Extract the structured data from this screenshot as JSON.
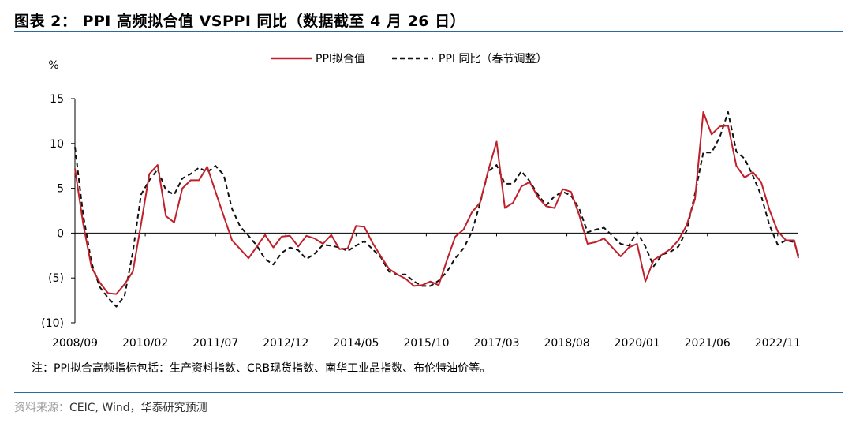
{
  "header": {
    "figure_title": "图表 2：  PPI 高频拟合值 VSPPI 同比（数据截至 4 月 26 日）"
  },
  "footer": {
    "note": "注：PPI拟合高频指标包括：生产资料指数、CRB现货指数、南华工业品指数、布伦特油价等。",
    "source_prefix": "资料来源：",
    "source_rest": "CEIC, Wind，华泰研究预测"
  },
  "colors": {
    "fit": "#c0202a",
    "actual": "#111111",
    "rule": "#2b6a9e"
  },
  "chart_data": {
    "type": "line",
    "title": "",
    "ylabel": "%",
    "xlabel": "",
    "ylim": [
      -10,
      15
    ],
    "yticks": [
      15,
      10,
      5,
      0,
      -5,
      -10
    ],
    "ytick_labels": [
      "15",
      "10",
      "5",
      "0",
      "(5)",
      "(10)"
    ],
    "xtick_labels": [
      "2008/09",
      "2010/02",
      "2011/07",
      "2012/12",
      "2014/05",
      "2015/10",
      "2017/03",
      "2018/08",
      "2020/01",
      "2021/06",
      "2022/11"
    ],
    "x_range": [
      "2008/09",
      "2023/04"
    ],
    "legend_position": "top-center",
    "grid": false,
    "series": [
      {
        "name": "PPI拟合值",
        "style": "solid",
        "x": [
          "2008/09",
          "2008/11",
          "2009/01",
          "2009/03",
          "2009/05",
          "2009/07",
          "2009/09",
          "2009/11",
          "2010/01",
          "2010/03",
          "2010/05",
          "2010/07",
          "2010/09",
          "2010/11",
          "2011/01",
          "2011/03",
          "2011/05",
          "2011/07",
          "2011/09",
          "2011/11",
          "2012/01",
          "2012/03",
          "2012/05",
          "2012/07",
          "2012/09",
          "2012/11",
          "2013/01",
          "2013/03",
          "2013/05",
          "2013/07",
          "2013/09",
          "2013/11",
          "2014/01",
          "2014/03",
          "2014/05",
          "2014/07",
          "2014/09",
          "2014/11",
          "2015/01",
          "2015/03",
          "2015/05",
          "2015/07",
          "2015/09",
          "2015/11",
          "2016/01",
          "2016/03",
          "2016/05",
          "2016/07",
          "2016/09",
          "2016/11",
          "2017/01",
          "2017/03",
          "2017/05",
          "2017/07",
          "2017/09",
          "2017/11",
          "2018/01",
          "2018/03",
          "2018/05",
          "2018/07",
          "2018/09",
          "2018/11",
          "2019/01",
          "2019/03",
          "2019/05",
          "2019/07",
          "2019/09",
          "2019/11",
          "2020/01",
          "2020/03",
          "2020/05",
          "2020/07",
          "2020/09",
          "2020/11",
          "2021/01",
          "2021/03",
          "2021/05",
          "2021/07",
          "2021/09",
          "2021/11",
          "2022/01",
          "2022/03",
          "2022/05",
          "2022/07",
          "2022/09",
          "2022/11",
          "2023/01",
          "2023/03",
          "2023/04"
        ],
        "values": [
          7.2,
          1.0,
          -3.8,
          -5.5,
          -6.7,
          -6.8,
          -5.7,
          -4.3,
          1.0,
          6.6,
          7.6,
          1.9,
          1.2,
          5.0,
          5.9,
          5.9,
          7.4,
          4.6,
          1.9,
          -0.8,
          -1.8,
          -2.8,
          -1.5,
          -0.2,
          -1.6,
          -0.4,
          -0.3,
          -1.5,
          -0.3,
          -0.6,
          -1.2,
          -0.2,
          -1.8,
          -1.7,
          0.8,
          0.7,
          -1.1,
          -2.6,
          -4.0,
          -4.6,
          -5.1,
          -5.9,
          -5.8,
          -5.4,
          -5.8,
          -3.0,
          -0.4,
          0.4,
          2.3,
          3.4,
          7.0,
          10.2,
          2.8,
          3.4,
          5.2,
          5.7,
          4.0,
          3.0,
          2.8,
          4.9,
          4.6,
          2.0,
          -1.2,
          -1.0,
          -0.6,
          -1.6,
          -2.6,
          -1.6,
          -1.2,
          -5.4,
          -3.0,
          -2.4,
          -1.8,
          -0.8,
          0.9,
          3.8,
          13.5,
          11.0,
          11.9,
          12.0,
          7.5,
          6.2,
          6.8,
          5.7,
          2.6,
          0.2,
          -0.8,
          -0.8,
          -2.8
        ]
      },
      {
        "name": "PPI 同比（春节调整）",
        "style": "dashed",
        "x": [
          "2008/09",
          "2008/11",
          "2009/01",
          "2009/03",
          "2009/05",
          "2009/07",
          "2009/09",
          "2009/11",
          "2010/01",
          "2010/03",
          "2010/05",
          "2010/07",
          "2010/09",
          "2010/11",
          "2011/01",
          "2011/03",
          "2011/05",
          "2011/07",
          "2011/09",
          "2011/11",
          "2012/01",
          "2012/03",
          "2012/05",
          "2012/07",
          "2012/09",
          "2012/11",
          "2013/01",
          "2013/03",
          "2013/05",
          "2013/07",
          "2013/09",
          "2013/11",
          "2014/01",
          "2014/03",
          "2014/05",
          "2014/07",
          "2014/09",
          "2014/11",
          "2015/01",
          "2015/03",
          "2015/05",
          "2015/07",
          "2015/09",
          "2015/11",
          "2016/01",
          "2016/03",
          "2016/05",
          "2016/07",
          "2016/09",
          "2016/11",
          "2017/01",
          "2017/03",
          "2017/05",
          "2017/07",
          "2017/09",
          "2017/11",
          "2018/01",
          "2018/03",
          "2018/05",
          "2018/07",
          "2018/09",
          "2018/11",
          "2019/01",
          "2019/03",
          "2019/05",
          "2019/07",
          "2019/09",
          "2019/11",
          "2020/01",
          "2020/03",
          "2020/05",
          "2020/07",
          "2020/09",
          "2020/11",
          "2021/01",
          "2021/03",
          "2021/05",
          "2021/07",
          "2021/09",
          "2021/11",
          "2022/01",
          "2022/03",
          "2022/05",
          "2022/07",
          "2022/09",
          "2022/11",
          "2023/01",
          "2023/03",
          "2023/04"
        ],
        "values": [
          9.6,
          2.0,
          -3.3,
          -6.0,
          -7.2,
          -8.2,
          -7.0,
          -2.1,
          4.3,
          5.9,
          7.1,
          4.8,
          4.3,
          6.1,
          6.6,
          7.3,
          6.8,
          7.5,
          6.5,
          2.7,
          0.7,
          -0.3,
          -1.4,
          -2.9,
          -3.5,
          -2.2,
          -1.6,
          -1.9,
          -2.9,
          -2.3,
          -1.3,
          -1.4,
          -1.6,
          -2.0,
          -1.4,
          -0.9,
          -1.8,
          -2.7,
          -4.3,
          -4.6,
          -4.6,
          -5.4,
          -5.9,
          -5.9,
          -5.3,
          -4.3,
          -2.8,
          -1.7,
          0.1,
          3.3,
          6.9,
          7.6,
          5.5,
          5.5,
          6.9,
          5.8,
          4.3,
          3.1,
          4.1,
          4.6,
          4.2,
          2.7,
          0.1,
          0.4,
          0.6,
          -0.3,
          -1.2,
          -1.4,
          0.1,
          -1.5,
          -3.7,
          -2.4,
          -2.1,
          -1.5,
          0.3,
          4.4,
          9.0,
          9.0,
          10.7,
          13.5,
          9.1,
          8.3,
          6.4,
          4.2,
          0.9,
          -1.3,
          -0.8,
          -1.0,
          -2.5
        ]
      }
    ]
  }
}
